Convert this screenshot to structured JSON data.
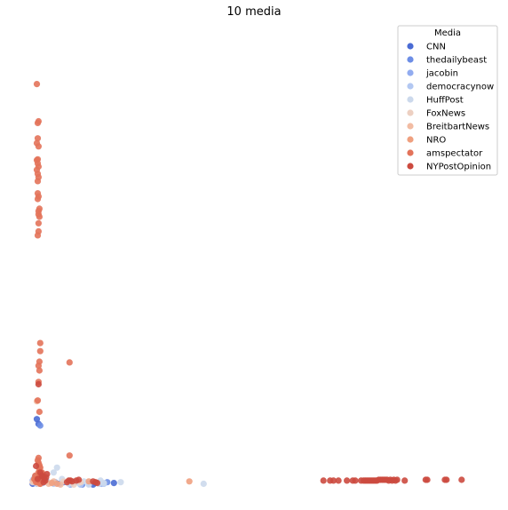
{
  "chart_data": {
    "type": "scatter",
    "title": "10 media",
    "xlabel": "",
    "ylabel": "",
    "axes_visible": false,
    "grid": false,
    "legend_position": "top-right",
    "legend_title": "Media",
    "xlim": [
      0,
      600
    ],
    "ylim": [
      0,
      560
    ],
    "series": [
      {
        "name": "CNN",
        "color": "#4a6bd4",
        "x": [
          3,
          5,
          6,
          8,
          10,
          40,
          75,
          78,
          100
        ],
        "y": [
          6,
          10,
          15,
          86,
          80,
          8,
          5,
          7,
          7
        ]
      },
      {
        "name": "thedailybeast",
        "color": "#6d8ee6",
        "x": [
          4,
          6,
          9,
          12,
          35,
          55,
          62,
          92
        ],
        "y": [
          8,
          12,
          7,
          78,
          6,
          8,
          5,
          8
        ]
      },
      {
        "name": "jacobin",
        "color": "#92acf0",
        "x": [
          3,
          7,
          10,
          15,
          30,
          48,
          70,
          85
        ],
        "y": [
          10,
          14,
          9,
          7,
          8,
          5,
          6,
          6
        ]
      },
      {
        "name": "democracynow",
        "color": "#b3c8f2",
        "x": [
          4,
          8,
          12,
          20,
          28,
          45,
          60,
          88
        ],
        "y": [
          12,
          6,
          15,
          9,
          6,
          8,
          5,
          6
        ]
      },
      {
        "name": "HuffPost",
        "color": "#ccd9ec",
        "x": [
          5,
          10,
          16,
          28,
          32,
          38,
          46,
          52,
          58,
          64,
          70,
          82,
          84,
          88,
          108,
          207
        ],
        "y": [
          9,
          16,
          8,
          20,
          26,
          12,
          6,
          8,
          7,
          9,
          5,
          6,
          10,
          7,
          8,
          6
        ]
      },
      {
        "name": "FoxNews",
        "color": "#edd0c2",
        "x": [
          3,
          6,
          10,
          18,
          24,
          40,
          52,
          60
        ],
        "y": [
          8,
          12,
          6,
          10,
          7,
          9,
          5,
          8
        ]
      },
      {
        "name": "BreitbartNews",
        "color": "#f2bca3",
        "x": [
          4,
          7,
          8,
          14,
          22,
          28,
          36
        ],
        "y": [
          10,
          14,
          108,
          8,
          6,
          9,
          5
        ]
      },
      {
        "name": "NRO",
        "color": "#efa07f",
        "x": [
          5,
          8,
          12,
          26,
          32,
          70,
          190
        ],
        "y": [
          12,
          8,
          6,
          7,
          6,
          9,
          9
        ]
      },
      {
        "name": "amspectator",
        "color": "#e3735a",
        "x": [
          8,
          9,
          10,
          9,
          8,
          10,
          9,
          8,
          9,
          10,
          8,
          9,
          10,
          9,
          9,
          10,
          9,
          11,
          10,
          10,
          11,
          10,
          10,
          9,
          12,
          12,
          11,
          10,
          11,
          10,
          9,
          11,
          10,
          9,
          10,
          11,
          12,
          11,
          10,
          12,
          47,
          47,
          5,
          6,
          14,
          7,
          13,
          8,
          15,
          12
        ],
        "y": [
          500,
          452,
          454,
          433,
          427,
          423,
          407,
          406,
          402,
          398,
          394,
          389,
          385,
          380,
          365,
          361,
          358,
          346,
          343,
          339,
          336,
          328,
          318,
          313,
          180,
          170,
          157,
          152,
          146,
          132,
          109,
          95,
          38,
          35,
          32,
          29,
          26,
          24,
          20,
          17,
          156,
          41,
          12,
          16,
          20,
          8,
          14,
          10,
          18,
          6
        ]
      },
      {
        "name": "NYPostOpinion",
        "color": "#cc4a3f",
        "x": [
          10,
          7,
          12,
          15,
          9,
          18,
          14,
          16,
          17,
          19,
          20,
          44,
          46,
          48,
          50,
          55,
          58,
          75,
          78,
          80,
          350,
          358,
          362,
          368,
          378,
          385,
          388,
          395,
          398,
          400,
          402,
          404,
          406,
          408,
          410,
          412,
          414,
          416,
          418,
          420,
          422,
          424,
          426,
          428,
          430,
          432,
          434,
          436,
          438,
          447,
          472,
          474,
          495,
          497,
          515
        ],
        "y": [
          129,
          28,
          20,
          15,
          12,
          10,
          16,
          8,
          12,
          14,
          18,
          8,
          10,
          10,
          9,
          10,
          11,
          9,
          8,
          7,
          10,
          10,
          10,
          10,
          10,
          10,
          10,
          10,
          10,
          10,
          10,
          10,
          10,
          10,
          10,
          10,
          10,
          11,
          11,
          11,
          11,
          11,
          11,
          10,
          11,
          10,
          11,
          10,
          11,
          10,
          11,
          11,
          11,
          11,
          11
        ]
      }
    ]
  }
}
